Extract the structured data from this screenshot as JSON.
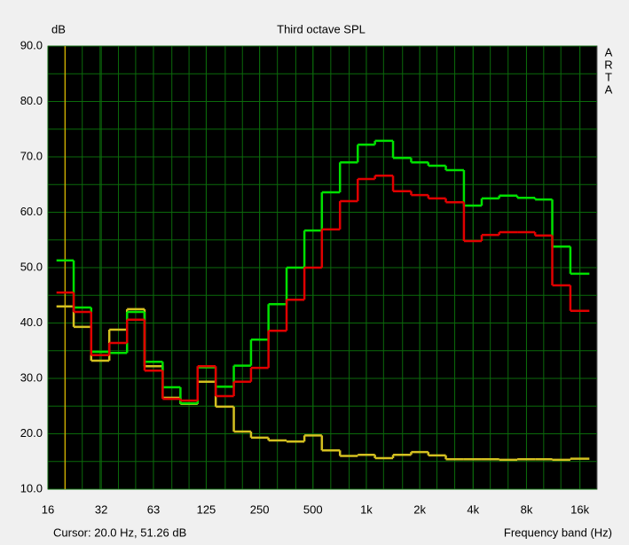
{
  "chart_data": {
    "type": "step",
    "title": "Third octave SPL",
    "y_label": "dB",
    "x_label": "Frequency band (Hz)",
    "side_label": [
      "A",
      "R",
      "T",
      "A"
    ],
    "cursor": {
      "label": "Cursor: 20.0 Hz, 51.26 dB",
      "x": 20,
      "color": "#c8a800"
    },
    "xscale": "log",
    "xlim": [
      16,
      20000
    ],
    "ylim": [
      10,
      90
    ],
    "xticks": [
      16,
      32,
      63,
      125,
      250,
      500,
      {
        "value": 1000,
        "label": "1k"
      },
      {
        "value": 2000,
        "label": "2k"
      },
      {
        "value": 4000,
        "label": "4k"
      },
      {
        "value": 8000,
        "label": "8k"
      },
      {
        "value": 16000,
        "label": "16k"
      }
    ],
    "yticks": [
      {
        "value": 10,
        "label": "10.0"
      },
      {
        "value": 20,
        "label": "20.0"
      },
      {
        "value": 30,
        "label": "30.0"
      },
      {
        "value": 40,
        "label": "40.0"
      },
      {
        "value": 50,
        "label": "50.0"
      },
      {
        "value": 60,
        "label": "60.0"
      },
      {
        "value": 70,
        "label": "70.0"
      },
      {
        "value": 80,
        "label": "80.0"
      },
      {
        "value": 90,
        "label": "90.0"
      }
    ],
    "yminorticks": [
      15,
      25,
      35,
      45,
      55,
      65,
      75,
      85
    ],
    "grid": true,
    "x": [
      20,
      25,
      31.5,
      40,
      50,
      63,
      80,
      100,
      125,
      160,
      200,
      250,
      315,
      400,
      500,
      630,
      800,
      1000,
      1250,
      1600,
      2000,
      2500,
      3150,
      4000,
      5000,
      6300,
      8000,
      10000,
      12500,
      16000
    ],
    "series": [
      {
        "color": "#d4c020",
        "values": [
          43,
          39.3,
          33.2,
          38.8,
          42.5,
          32.2,
          26.5,
          25.4,
          29.4,
          24.9,
          20.4,
          19.3,
          18.8,
          18.6,
          19.7,
          17,
          16,
          16.2,
          15.6,
          16.2,
          16.7,
          16.1,
          15.4,
          15.4,
          15.4,
          15.3,
          15.4,
          15.4,
          15.3,
          15.5
        ]
      },
      {
        "color": "#00e000",
        "values": [
          51.3,
          42.8,
          34.8,
          34.6,
          42,
          33,
          28.4,
          25.5,
          32,
          28.5,
          32.3,
          37,
          43.4,
          50,
          56.7,
          63.6,
          69,
          72.2,
          72.9,
          69.8,
          69,
          68.4,
          67.6,
          61.2,
          62.5,
          63,
          62.6,
          62.3,
          53.8,
          48.9
        ]
      },
      {
        "color": "#e00000",
        "values": [
          45.5,
          42,
          34.2,
          36.4,
          40.6,
          31.4,
          26.3,
          26,
          32.2,
          26.8,
          29.4,
          31.9,
          38.6,
          44.2,
          50,
          56.9,
          62,
          66,
          66.6,
          63.8,
          63.1,
          62.5,
          61.8,
          54.8,
          55.9,
          56.4,
          56.4,
          55.8,
          46.8,
          42.2
        ]
      }
    ]
  }
}
